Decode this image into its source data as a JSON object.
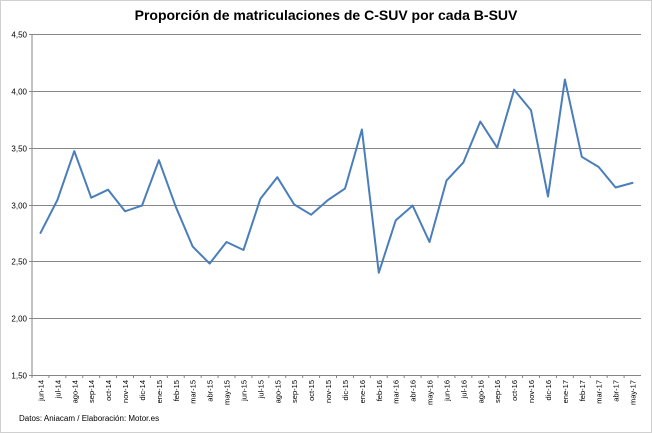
{
  "chart_data": {
    "type": "line",
    "title": "Proporción de matriculaciones de C-SUV por cada B-SUV",
    "xlabel": "",
    "ylabel": "",
    "ylim": [
      1.5,
      4.5
    ],
    "y_ticks": [
      "1,50",
      "2,00",
      "2,50",
      "3,00",
      "3,50",
      "4,00",
      "4,50"
    ],
    "grid": true,
    "legend": "none",
    "line_color": "#4a7ebb",
    "categories": [
      "jun-14",
      "jul-14",
      "ago-14",
      "sep-14",
      "oct-14",
      "nov-14",
      "dic-14",
      "ene-15",
      "feb-15",
      "mar-15",
      "abr-15",
      "may-15",
      "jun-15",
      "jul-15",
      "ago-15",
      "sep-15",
      "oct-15",
      "nov-15",
      "dic-15",
      "ene-16",
      "feb-16",
      "mar-16",
      "abr-16",
      "may-16",
      "jun-16",
      "jul-16",
      "ago-16",
      "sep-16",
      "oct-16",
      "nov-16",
      "dic-16",
      "ene-17",
      "feb-17",
      "mar-17",
      "abr-17",
      "may-17"
    ],
    "series": [
      {
        "values": [
          2.75,
          3.04,
          3.47,
          3.06,
          3.13,
          2.94,
          2.99,
          3.39,
          2.98,
          2.63,
          2.48,
          2.67,
          2.6,
          3.05,
          3.24,
          3.0,
          2.91,
          3.04,
          3.14,
          3.66,
          2.4,
          2.86,
          2.99,
          2.67,
          3.21,
          3.37,
          3.73,
          3.5,
          4.01,
          3.83,
          3.07,
          4.1,
          3.42,
          3.33,
          3.15,
          3.19
        ]
      }
    ]
  },
  "footer": {
    "source": "Datos: Aniacam  / Elaboración:  Motor.es"
  }
}
